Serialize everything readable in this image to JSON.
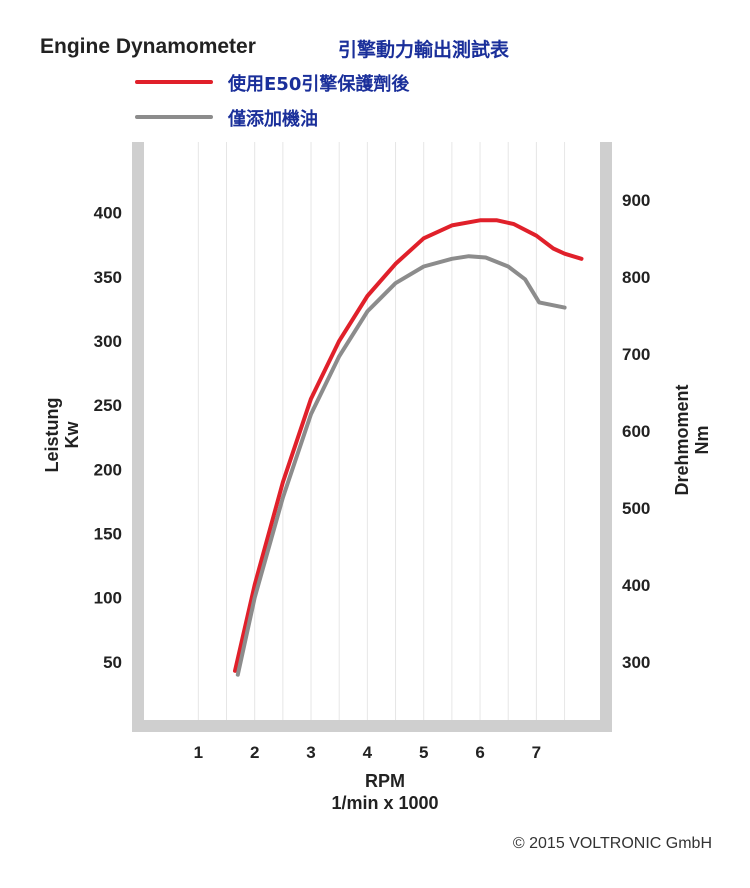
{
  "header": {
    "title_en": "Engine Dynamometer",
    "title_zh": "引擎動力輸出測試表"
  },
  "colors": {
    "series_red": "#e0202a",
    "series_gray": "#8c8c8c",
    "frame": "#cfcfcf",
    "grid": "#e6e6e6",
    "label_blue": "#1a2f9a"
  },
  "chart_data": {
    "type": "line",
    "xlabel": "RPM",
    "xlabel_unit": "1/min x 1000",
    "ylabel_left": "Leistung",
    "ylabel_left_unit": "Kw",
    "ylabel_right": "Drehmoment",
    "ylabel_right_unit": "Nm",
    "x_ticks": [
      1,
      2,
      3,
      4,
      5,
      6,
      7
    ],
    "y_left_ticks": [
      50,
      100,
      150,
      200,
      250,
      300,
      350,
      400
    ],
    "y_right_ticks": [
      300,
      400,
      500,
      600,
      700,
      800,
      900
    ],
    "xlim": [
      0.0,
      8.2
    ],
    "ylim_left": [
      0,
      455
    ],
    "grid": true,
    "legend_position": "top-left",
    "series": [
      {
        "name": "使用E50引擎保護劑後",
        "color": "#e0202a",
        "x": [
          1.65,
          2.0,
          2.5,
          3.0,
          3.5,
          4.0,
          4.5,
          5.0,
          5.5,
          6.0,
          6.3,
          6.6,
          7.0,
          7.3,
          7.5,
          7.8
        ],
        "y": [
          43,
          110,
          190,
          255,
          300,
          335,
          360,
          380,
          390,
          394,
          394,
          391,
          382,
          372,
          368,
          364
        ]
      },
      {
        "name": "僅添加機油",
        "color": "#8c8c8c",
        "x": [
          1.7,
          2.0,
          2.5,
          3.0,
          3.5,
          4.0,
          4.5,
          5.0,
          5.5,
          5.8,
          6.1,
          6.5,
          6.8,
          7.05,
          7.5
        ],
        "y": [
          40,
          100,
          178,
          243,
          288,
          323,
          345,
          358,
          364,
          366,
          365,
          358,
          348,
          330,
          326
        ]
      }
    ]
  },
  "footer": {
    "copyright": "© 2015 VOLTRONIC GmbH"
  }
}
